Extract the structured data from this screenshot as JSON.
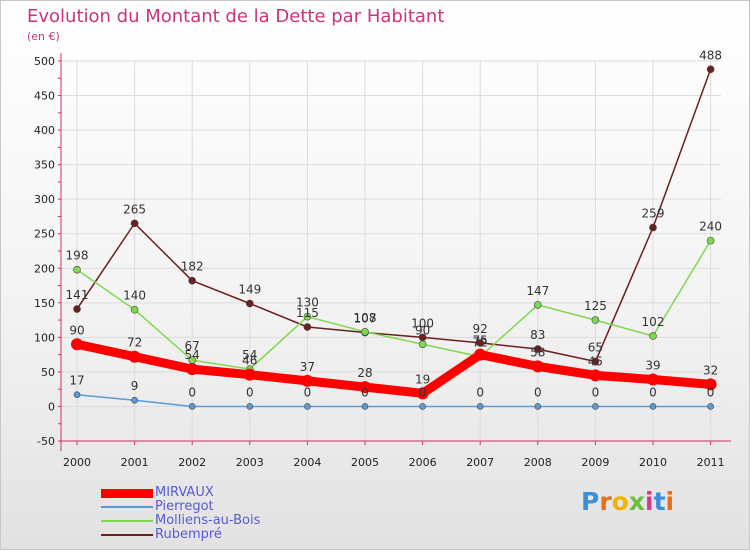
{
  "title": "Evolution du Montant de la Dette par Habitant",
  "subtitle": "(en €)",
  "logo": "Proxiti",
  "colors": {
    "title": "#c8357e",
    "axis": "#d0306e",
    "legend_text": "#5a5ad0"
  },
  "chart_data": {
    "type": "line",
    "categories": [
      "2000",
      "2001",
      "2002",
      "2003",
      "2004",
      "2005",
      "2006",
      "2007",
      "2008",
      "2009",
      "2010",
      "2011"
    ],
    "ylim": [
      -50,
      500
    ],
    "yticks": [
      -50,
      0,
      50,
      100,
      150,
      200,
      250,
      300,
      350,
      400,
      450,
      500
    ],
    "grid": true,
    "legend_position": "bottom-left",
    "series": [
      {
        "name": "MIRVAUX",
        "color": "#ff0000",
        "values": [
          90,
          72,
          54,
          46,
          37,
          28,
          19,
          75,
          58,
          45,
          39,
          32
        ],
        "labels": [
          "90",
          "72",
          "54",
          "46",
          "37",
          "28",
          "19",
          "75",
          "58",
          "45",
          "39",
          "32"
        ]
      },
      {
        "name": "Pierregot",
        "color": "#5b9bd5",
        "values": [
          17,
          9,
          0,
          0,
          0,
          0,
          0,
          0,
          0,
          0,
          0,
          0
        ],
        "labels": [
          "17",
          "9",
          "0",
          "0",
          "0",
          "0",
          "0",
          "0",
          "0",
          "0",
          "0",
          "0"
        ]
      },
      {
        "name": "Molliens-au-Bois",
        "color": "#7fd94f",
        "values": [
          198,
          140,
          67,
          54,
          130,
          108,
          90,
          72,
          147,
          125,
          102,
          240
        ],
        "labels": [
          "198",
          "140",
          "67",
          "54",
          "130",
          "108",
          "90",
          "72",
          "147",
          "125",
          "102",
          "240"
        ]
      },
      {
        "name": "Rubempré",
        "color": "#6b1f1f",
        "values": [
          141,
          265,
          182,
          149,
          115,
          107,
          100,
          92,
          83,
          65,
          259,
          488
        ],
        "labels": [
          "141",
          "265",
          "182",
          "149",
          "115",
          "107",
          "100",
          "92",
          "83",
          "65",
          "259",
          "488"
        ]
      }
    ]
  }
}
